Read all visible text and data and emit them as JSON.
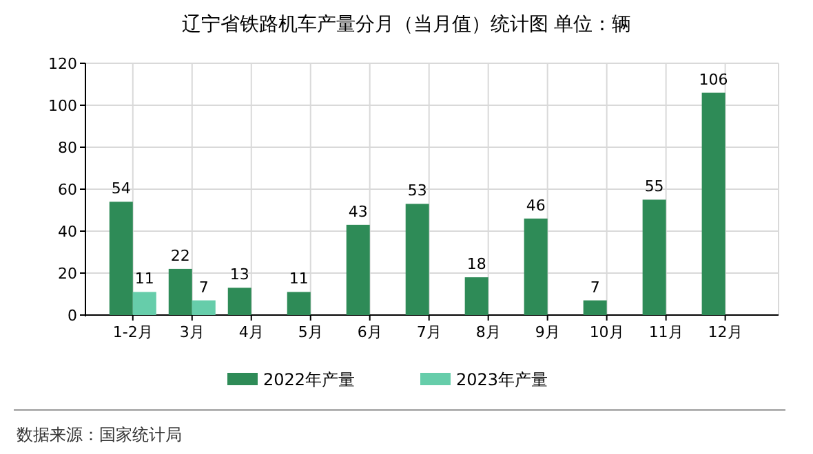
{
  "chart_data": {
    "type": "bar",
    "title": "辽宁省铁路机车产量分月（当月值）统计图 单位：辆",
    "categories": [
      "1-2月",
      "3月",
      "4月",
      "5月",
      "6月",
      "7月",
      "8月",
      "9月",
      "10月",
      "11月",
      "12月"
    ],
    "series": [
      {
        "name": "2022年产量",
        "color": "#2e8b57",
        "values": [
          54,
          22,
          13,
          11,
          43,
          53,
          18,
          46,
          7,
          55,
          106
        ]
      },
      {
        "name": "2023年产量",
        "color": "#66cdaa",
        "values": [
          11,
          7,
          null,
          null,
          null,
          null,
          null,
          null,
          null,
          null,
          null
        ]
      }
    ],
    "ylim": [
      0,
      120
    ],
    "yticks": [
      0,
      20,
      40,
      60,
      80,
      100,
      120
    ],
    "grid": true,
    "legend": "bottom",
    "data_labels": true,
    "annotations": [
      "数据来源：国家统计局"
    ]
  }
}
